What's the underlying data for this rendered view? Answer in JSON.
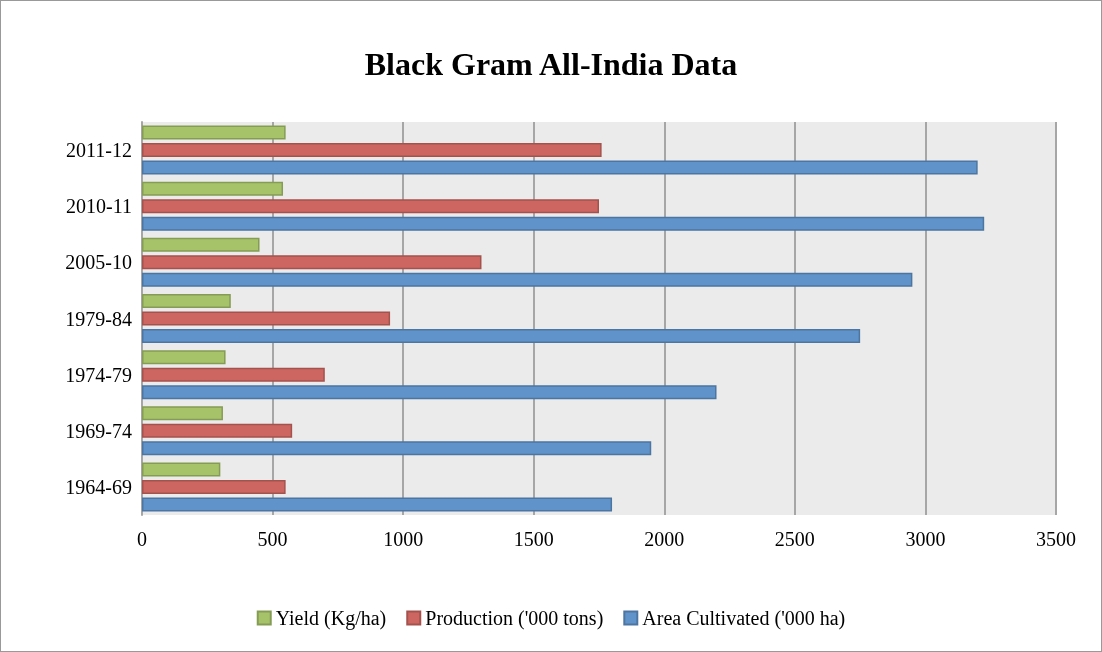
{
  "chart_data": {
    "type": "bar",
    "orientation": "horizontal",
    "title": "Black Gram All-India Data",
    "categories": [
      "2011-12",
      "2010-11",
      "2005-10",
      "1979-84",
      "1974-79",
      "1969-74",
      "1964-69"
    ],
    "series": [
      {
        "name": "Yield (Kg/ha)",
        "color": "#a6c36a",
        "values": [
          550,
          540,
          450,
          340,
          320,
          310,
          300
        ]
      },
      {
        "name": "Production ('000 tons)",
        "color": "#cd6660",
        "values": [
          1760,
          1750,
          1300,
          950,
          700,
          575,
          550
        ]
      },
      {
        "name": "Area Cultivated ('000 ha)",
        "color": "#5f93c9",
        "values": [
          3200,
          3225,
          2950,
          2750,
          2200,
          1950,
          1800
        ]
      }
    ],
    "xlim": [
      0,
      3500
    ],
    "xticks": [
      0,
      500,
      1000,
      1500,
      2000,
      2500,
      3000,
      3500
    ],
    "grid": "x",
    "legend": "bottom"
  }
}
